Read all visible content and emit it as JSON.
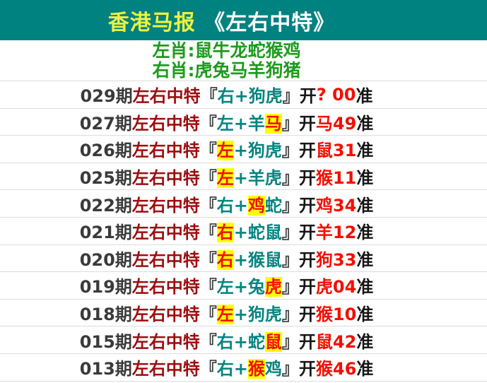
{
  "header": {
    "title_yellow": "香港马报",
    "title_white": "《左右中特》"
  },
  "zodiac": {
    "left_line": "左肖:鼠牛龙蛇猴鸡",
    "right_line": "右肖:虎兔马羊狗猪"
  },
  "row_common": {
    "label": "左右中特",
    "open_bracket": "『",
    "close_bracket": "』",
    "kai": "开",
    "zhun": "准"
  },
  "rows": [
    {
      "period": "029期",
      "picks": [
        {
          "text": "右+狗虎",
          "highlight": false
        }
      ],
      "result": "? 00"
    },
    {
      "period": "027期",
      "picks": [
        {
          "text": "左+羊",
          "highlight": false
        },
        {
          "text": "马",
          "highlight": true
        }
      ],
      "result": "马49"
    },
    {
      "period": "026期",
      "picks": [
        {
          "text": "左",
          "highlight": true
        },
        {
          "text": "+狗虎",
          "highlight": false
        }
      ],
      "result": "鼠31"
    },
    {
      "period": "025期",
      "picks": [
        {
          "text": "左",
          "highlight": true
        },
        {
          "text": "+羊虎",
          "highlight": false
        }
      ],
      "result": "猴11"
    },
    {
      "period": "022期",
      "picks": [
        {
          "text": "右+",
          "highlight": false
        },
        {
          "text": "鸡",
          "highlight": true
        },
        {
          "text": "蛇",
          "highlight": false
        }
      ],
      "result": "鸡34"
    },
    {
      "period": "021期",
      "picks": [
        {
          "text": "右",
          "highlight": true
        },
        {
          "text": "+蛇鼠",
          "highlight": false
        }
      ],
      "result": "羊12"
    },
    {
      "period": "020期",
      "picks": [
        {
          "text": "右",
          "highlight": true
        },
        {
          "text": "+猴鼠",
          "highlight": false
        }
      ],
      "result": "狗33"
    },
    {
      "period": "019期",
      "picks": [
        {
          "text": "左+兔",
          "highlight": false
        },
        {
          "text": "虎",
          "highlight": true
        }
      ],
      "result": "虎04"
    },
    {
      "period": "018期",
      "picks": [
        {
          "text": "左",
          "highlight": true
        },
        {
          "text": "+狗虎",
          "highlight": false
        }
      ],
      "result": "猴10"
    },
    {
      "period": "015期",
      "picks": [
        {
          "text": "右+蛇",
          "highlight": false
        },
        {
          "text": "鼠",
          "highlight": true
        }
      ],
      "result": "鼠42"
    },
    {
      "period": "013期",
      "picks": [
        {
          "text": "右+",
          "highlight": false
        },
        {
          "text": "猴",
          "highlight": true
        },
        {
          "text": "鸡",
          "highlight": false
        }
      ],
      "result": "猴46"
    }
  ],
  "colors": {
    "header_bg": "#008280",
    "title_yellow": "#edf23e",
    "title_white": "#ffffff",
    "zodiac_green": "#1e9b1e",
    "label_maroon": "#9c0d10",
    "pick_teal": "#048481",
    "result_red": "#f50d00",
    "highlight_bg": "#ffff00",
    "period_gray": "#3a3a3a",
    "divider": "#dcdcdc"
  }
}
